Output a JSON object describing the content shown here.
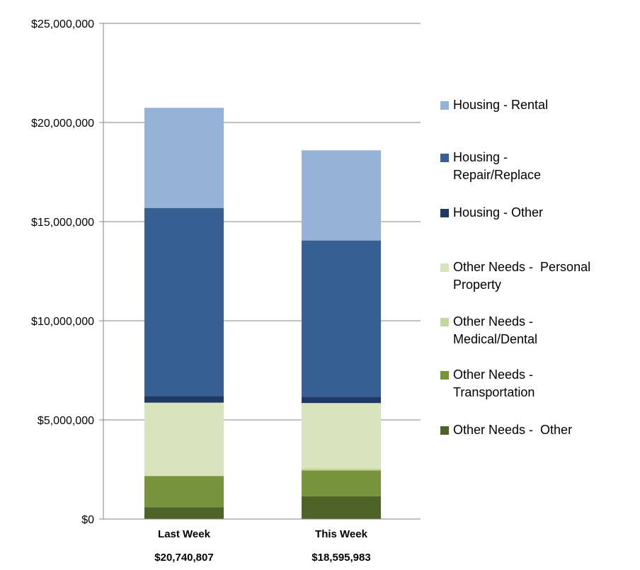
{
  "chart_data": {
    "type": "bar",
    "stacked": true,
    "categories": [
      "Last Week",
      "This Week"
    ],
    "category_totals": [
      "$20,740,807",
      "$18,595,983"
    ],
    "ylim": [
      0,
      25000000
    ],
    "ytick_values": [
      0,
      5000000,
      10000000,
      15000000,
      20000000,
      25000000
    ],
    "ytick_labels": [
      "$0",
      "$5,000,000",
      "$10,000,000",
      "$15,000,000",
      "$20,000,000",
      "$25,000,000"
    ],
    "grid": true,
    "legend_position": "right",
    "series": [
      {
        "name": "Other Needs -  Other",
        "color": "#4f6228",
        "values": [
          600000,
          1150000
        ]
      },
      {
        "name": "Other Needs - Transportation",
        "color": "#77933c",
        "values": [
          1570000,
          1300000
        ]
      },
      {
        "name": "Other Needs - Medical/Dental",
        "color": "#c3d69b",
        "values": [
          0,
          100000
        ]
      },
      {
        "name": "Other Needs -  Personal Property",
        "color": "#d7e4bd",
        "values": [
          3700000,
          3300000
        ]
      },
      {
        "name": "Housing - Other",
        "color": "#1f3864",
        "values": [
          330000,
          320000
        ]
      },
      {
        "name": "Housing - Repair/Replace",
        "color": "#366092",
        "values": [
          9490000,
          7880000
        ]
      },
      {
        "name": "Housing - Rental",
        "color": "#95b3d7",
        "values": [
          5050807,
          4545983
        ]
      }
    ]
  },
  "legend": {
    "items": [
      {
        "label": "Housing - Rental",
        "color": "#95b3d7"
      },
      {
        "label": "Housing -\nRepair/Replace",
        "color": "#366092"
      },
      {
        "label": "Housing - Other",
        "color": "#1f3864"
      },
      {
        "label": "Other Needs -  Personal\nProperty",
        "color": "#d7e4bd"
      },
      {
        "label": "Other Needs -\nMedical/Dental",
        "color": "#c3d69b"
      },
      {
        "label": "Other Needs -\nTransportation",
        "color": "#77933c"
      },
      {
        "label": "Other Needs -  Other",
        "color": "#4f6228"
      }
    ]
  }
}
